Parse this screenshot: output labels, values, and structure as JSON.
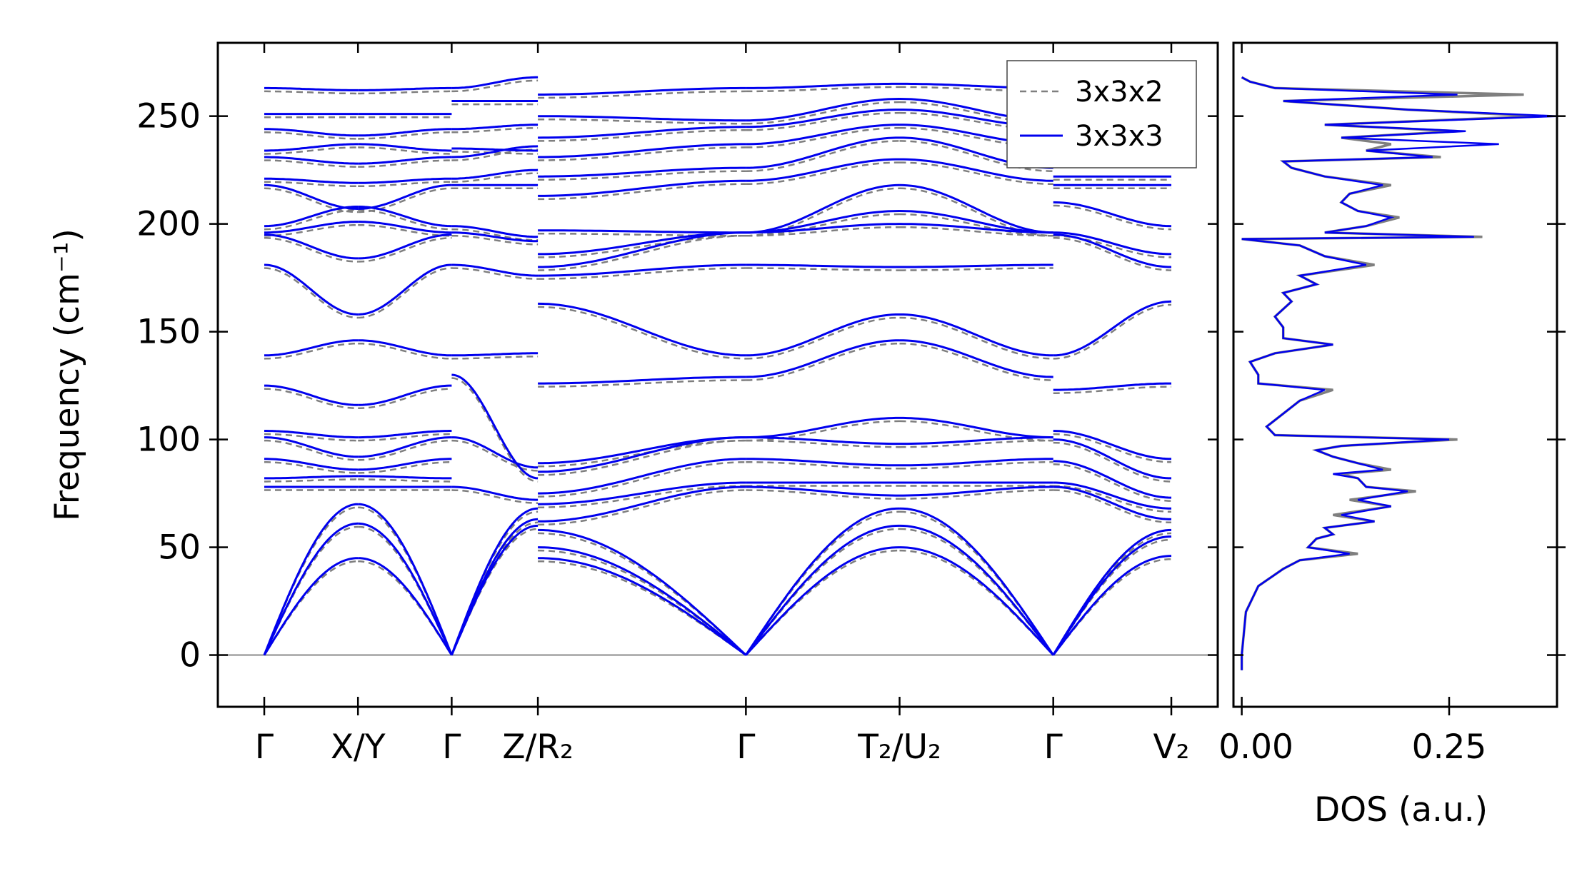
{
  "chart_data": [
    {
      "type": "line",
      "panel": "band-structure",
      "ylabel": "Frequency (cm⁻¹)",
      "ylim": [
        -24,
        284
      ],
      "yticks": [
        0,
        50,
        100,
        150,
        200,
        250
      ],
      "kpoints": [
        {
          "label": "Γ",
          "k": 0.0
        },
        {
          "label": "X/Y",
          "k": 0.5
        },
        {
          "label": "Γ",
          "k": 1.0
        },
        {
          "label": "Z/R₂",
          "k": 1.46
        },
        {
          "label": "Γ",
          "k": 2.57
        },
        {
          "label": "T₂/U₂",
          "k": 3.39
        },
        {
          "label": "Γ",
          "k": 4.21
        },
        {
          "label": "V₂",
          "k": 4.84
        }
      ],
      "legend_position": "top-right",
      "series": [
        {
          "name": "3x3x2",
          "color": "#7f7f7f",
          "style": "dashed"
        },
        {
          "name": "3x3x3",
          "color": "#0000ee",
          "style": "solid"
        }
      ],
      "branches_3x3x3": [
        {
          "segment": "Γ-X",
          "gamma": [
            0,
            0,
            0,
            78,
            82,
            91,
            101,
            104,
            125,
            139,
            181,
            195,
            196,
            199,
            218,
            221,
            231,
            234,
            244,
            251,
            263
          ],
          "zone": [
            45,
            61,
            70,
            78,
            83,
            86,
            92,
            101,
            116,
            146,
            158,
            184,
            201,
            208,
            207,
            219,
            228,
            237,
            241,
            251,
            262
          ]
        },
        {
          "segment": "Γ-Z",
          "gamma": [
            0,
            0,
            0,
            78,
            101,
            130,
            139,
            181,
            196,
            199,
            218,
            221,
            231,
            235,
            244,
            257,
            263
          ],
          "zone": [
            60,
            63,
            68,
            72,
            87,
            82,
            140,
            176,
            192,
            194,
            218,
            225,
            236,
            234,
            246,
            257,
            268
          ]
        },
        {
          "segment": "R₂-Γ",
          "gamma": [
            45,
            50,
            58,
            62,
            70,
            75,
            85,
            89,
            126,
            163,
            176,
            180,
            186,
            197,
            213,
            222,
            231,
            240,
            250,
            260
          ],
          "zone": [
            0,
            0,
            0,
            78,
            80,
            91,
            101,
            101,
            129,
            139,
            181,
            196,
            196,
            196,
            220,
            226,
            237,
            245,
            248,
            263
          ]
        },
        {
          "segment": "Γ-T₂",
          "gamma": [
            0,
            0,
            0,
            78,
            80,
            91,
            101,
            101,
            129,
            139,
            181,
            196,
            196,
            196,
            220,
            226,
            237,
            245,
            248,
            263
          ],
          "zone": [
            50,
            60,
            68,
            74,
            80,
            88,
            98,
            110,
            146,
            158,
            180,
            200,
            206,
            218,
            230,
            240,
            246,
            253,
            258,
            265
          ]
        },
        {
          "segment": "Γ-V₂",
          "gamma": [
            0,
            0,
            0,
            78,
            80,
            90,
            100,
            104,
            123,
            139,
            195,
            196,
            210,
            218,
            222
          ],
          "zone": [
            46,
            55,
            58,
            63,
            68,
            73,
            82,
            91,
            126,
            164,
            180,
            186,
            199,
            218,
            222
          ]
        }
      ]
    },
    {
      "type": "line",
      "panel": "density-of-states",
      "xlabel": "DOS (a.u.)",
      "xlim": [
        -0.01,
        0.38
      ],
      "xticks": [
        0.0,
        0.25
      ],
      "xtick_labels": [
        "0.00",
        "0.25"
      ],
      "ylim": [
        -24,
        284
      ],
      "series": [
        {
          "name": "3x3x2",
          "color": "#7f7f7f",
          "points": [
            [
              -7,
              0.0
            ],
            [
              0,
              0.0
            ],
            [
              20,
              0.005
            ],
            [
              32,
              0.02
            ],
            [
              40,
              0.05
            ],
            [
              44,
              0.07
            ],
            [
              47,
              0.14
            ],
            [
              50,
              0.08
            ],
            [
              54,
              0.09
            ],
            [
              56,
              0.11
            ],
            [
              59,
              0.1
            ],
            [
              62,
              0.16
            ],
            [
              65,
              0.11
            ],
            [
              69,
              0.18
            ],
            [
              72,
              0.13
            ],
            [
              76,
              0.21
            ],
            [
              78,
              0.15
            ],
            [
              82,
              0.14
            ],
            [
              84,
              0.12
            ],
            [
              86,
              0.18
            ],
            [
              89,
              0.14
            ],
            [
              92,
              0.11
            ],
            [
              95,
              0.09
            ],
            [
              97,
              0.12
            ],
            [
              100,
              0.26
            ],
            [
              102,
              0.04
            ],
            [
              106,
              0.03
            ],
            [
              112,
              0.05
            ],
            [
              118,
              0.07
            ],
            [
              123,
              0.11
            ],
            [
              126,
              0.02
            ],
            [
              130,
              0.02
            ],
            [
              136,
              0.01
            ],
            [
              140,
              0.04
            ],
            [
              144,
              0.11
            ],
            [
              147,
              0.05
            ],
            [
              152,
              0.05
            ],
            [
              157,
              0.04
            ],
            [
              164,
              0.06
            ],
            [
              168,
              0.05
            ],
            [
              172,
              0.09
            ],
            [
              176,
              0.07
            ],
            [
              181,
              0.16
            ],
            [
              185,
              0.1
            ],
            [
              190,
              0.07
            ],
            [
              193,
              0.0
            ],
            [
              194,
              0.29
            ],
            [
              196,
              0.1
            ],
            [
              199,
              0.15
            ],
            [
              203,
              0.19
            ],
            [
              206,
              0.14
            ],
            [
              210,
              0.12
            ],
            [
              214,
              0.13
            ],
            [
              218,
              0.18
            ],
            [
              222,
              0.1
            ],
            [
              226,
              0.06
            ],
            [
              229,
              0.05
            ],
            [
              231,
              0.24
            ],
            [
              234,
              0.15
            ],
            [
              237,
              0.18
            ],
            [
              240,
              0.12
            ],
            [
              243,
              0.26
            ],
            [
              246,
              0.1
            ],
            [
              250,
              0.36
            ],
            [
              253,
              0.2
            ],
            [
              257,
              0.05
            ],
            [
              260,
              0.34
            ],
            [
              263,
              0.04
            ],
            [
              266,
              0.01
            ],
            [
              268,
              0.0
            ]
          ]
        },
        {
          "name": "3x3x3",
          "color": "#0000ee",
          "points": [
            [
              -7,
              0.0
            ],
            [
              0,
              0.0
            ],
            [
              20,
              0.005
            ],
            [
              32,
              0.02
            ],
            [
              40,
              0.05
            ],
            [
              44,
              0.07
            ],
            [
              47,
              0.13
            ],
            [
              50,
              0.08
            ],
            [
              54,
              0.09
            ],
            [
              56,
              0.11
            ],
            [
              59,
              0.1
            ],
            [
              62,
              0.16
            ],
            [
              65,
              0.12
            ],
            [
              69,
              0.18
            ],
            [
              72,
              0.14
            ],
            [
              76,
              0.2
            ],
            [
              78,
              0.15
            ],
            [
              82,
              0.14
            ],
            [
              84,
              0.11
            ],
            [
              86,
              0.17
            ],
            [
              89,
              0.14
            ],
            [
              92,
              0.11
            ],
            [
              95,
              0.09
            ],
            [
              97,
              0.12
            ],
            [
              100,
              0.25
            ],
            [
              102,
              0.04
            ],
            [
              106,
              0.03
            ],
            [
              112,
              0.05
            ],
            [
              118,
              0.07
            ],
            [
              123,
              0.1
            ],
            [
              126,
              0.02
            ],
            [
              130,
              0.02
            ],
            [
              136,
              0.01
            ],
            [
              140,
              0.04
            ],
            [
              144,
              0.11
            ],
            [
              147,
              0.05
            ],
            [
              152,
              0.05
            ],
            [
              157,
              0.04
            ],
            [
              164,
              0.06
            ],
            [
              168,
              0.05
            ],
            [
              172,
              0.09
            ],
            [
              176,
              0.07
            ],
            [
              181,
              0.15
            ],
            [
              185,
              0.1
            ],
            [
              190,
              0.07
            ],
            [
              193,
              0.0
            ],
            [
              194,
              0.28
            ],
            [
              196,
              0.1
            ],
            [
              199,
              0.15
            ],
            [
              203,
              0.18
            ],
            [
              206,
              0.14
            ],
            [
              210,
              0.12
            ],
            [
              214,
              0.13
            ],
            [
              218,
              0.17
            ],
            [
              222,
              0.1
            ],
            [
              226,
              0.06
            ],
            [
              229,
              0.05
            ],
            [
              231,
              0.23
            ],
            [
              234,
              0.15
            ],
            [
              237,
              0.31
            ],
            [
              240,
              0.12
            ],
            [
              243,
              0.27
            ],
            [
              246,
              0.1
            ],
            [
              250,
              0.38
            ],
            [
              253,
              0.2
            ],
            [
              257,
              0.05
            ],
            [
              260,
              0.26
            ],
            [
              263,
              0.04
            ],
            [
              266,
              0.01
            ],
            [
              268,
              0.0
            ]
          ]
        }
      ]
    }
  ]
}
